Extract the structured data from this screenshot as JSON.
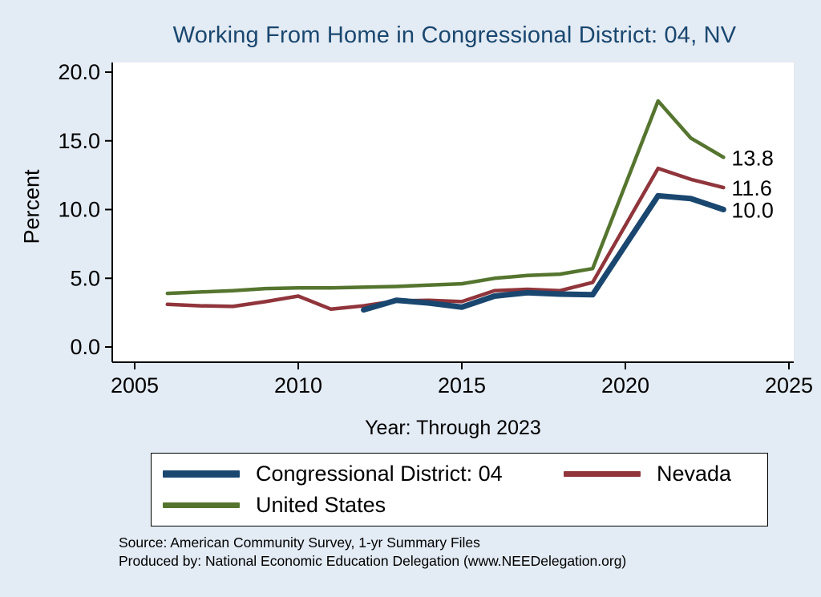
{
  "title": "Working From Home in Congressional District: 04, NV",
  "axes": {
    "y_label": "Percent",
    "x_label": "Year: Through 2023",
    "x_ticks": [
      "2005",
      "2010",
      "2015",
      "2020",
      "2025"
    ],
    "x_tick_values": [
      2005,
      2010,
      2015,
      2020,
      2025
    ],
    "y_ticks": [
      "0.0",
      "5.0",
      "10.0",
      "15.0",
      "20.0"
    ],
    "y_tick_values": [
      0,
      5,
      10,
      15,
      20
    ]
  },
  "chart_data": {
    "type": "line",
    "title": "Working From Home in Congressional District: 04, NV",
    "xlabel": "Year: Through 2023",
    "ylabel": "Percent",
    "xlim": [
      2005,
      2025
    ],
    "ylim": [
      0,
      20
    ],
    "grid": false,
    "legend_position": "bottom",
    "note": "No data point for 2020; lines connect 2019 directly to 2021.",
    "series": [
      {
        "name": "United States",
        "color": "#55752f",
        "line_width": 4.5,
        "x": [
          2006,
          2007,
          2008,
          2009,
          2010,
          2011,
          2012,
          2013,
          2014,
          2015,
          2016,
          2017,
          2018,
          2019,
          2021,
          2022,
          2023
        ],
        "values": [
          3.9,
          4.0,
          4.1,
          4.25,
          4.3,
          4.3,
          4.35,
          4.4,
          4.5,
          4.6,
          5.0,
          5.2,
          5.3,
          5.7,
          17.9,
          15.2,
          13.8
        ],
        "end_label": "13.8"
      },
      {
        "name": "Nevada",
        "color": "#90353b",
        "line_width": 4.5,
        "x": [
          2006,
          2007,
          2008,
          2009,
          2010,
          2011,
          2012,
          2013,
          2014,
          2015,
          2016,
          2017,
          2018,
          2019,
          2021,
          2022,
          2023
        ],
        "values": [
          3.1,
          3.0,
          2.95,
          3.3,
          3.7,
          2.75,
          3.0,
          3.35,
          3.4,
          3.3,
          4.1,
          4.2,
          4.1,
          4.7,
          13.0,
          12.2,
          11.6
        ],
        "end_label": "11.6"
      },
      {
        "name": "Congressional District: 04",
        "color": "#1a476f",
        "line_width": 7,
        "x": [
          2012,
          2013,
          2014,
          2015,
          2016,
          2017,
          2018,
          2019,
          2021,
          2022,
          2023
        ],
        "values": [
          2.7,
          3.4,
          3.2,
          2.9,
          3.7,
          3.95,
          3.85,
          3.8,
          11.0,
          10.8,
          10.0
        ],
        "end_label": "10.0"
      }
    ]
  },
  "legend": {
    "items": [
      {
        "label": "Congressional District: 04"
      },
      {
        "label": "Nevada"
      },
      {
        "label": "United States"
      }
    ]
  },
  "notes": {
    "source": "Source: American Community Survey, 1-yr Summary Files",
    "produced": "Produced by: National Economic Education Delegation (www.NEEDelegation.org)"
  }
}
